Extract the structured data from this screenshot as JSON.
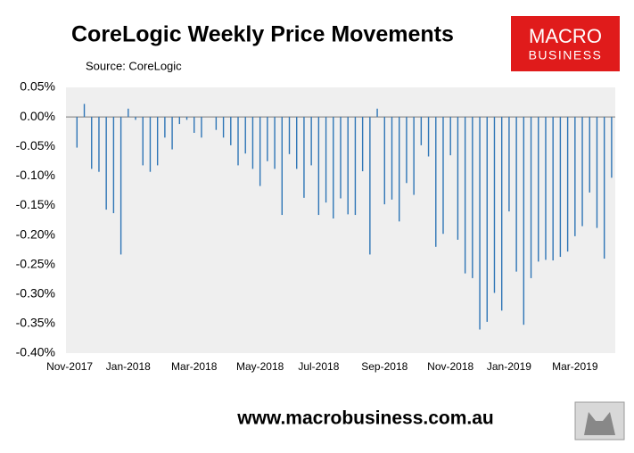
{
  "chart_data": {
    "type": "bar",
    "title": "CoreLogic Weekly Price Movements",
    "subtitle": "Source: CoreLogic",
    "categories": [
      "Nov-2017",
      null,
      null,
      null,
      null,
      null,
      null,
      null,
      "Jan-2018",
      null,
      null,
      null,
      null,
      null,
      null,
      null,
      null,
      "Mar-2018",
      null,
      null,
      null,
      null,
      null,
      null,
      null,
      null,
      "May-2018",
      null,
      null,
      null,
      null,
      null,
      null,
      null,
      "Jul-2018",
      null,
      null,
      null,
      null,
      null,
      null,
      null,
      null,
      "Sep-2018",
      null,
      null,
      null,
      null,
      null,
      null,
      null,
      null,
      "Nov-2018",
      null,
      null,
      null,
      null,
      null,
      null,
      null,
      "Jan-2019",
      null,
      null,
      null,
      null,
      null,
      null,
      null,
      null,
      "Mar-2019",
      null,
      null,
      null,
      null,
      null
    ],
    "values": [
      null,
      -0.052,
      0.022,
      -0.088,
      -0.093,
      -0.157,
      -0.163,
      -0.233,
      0.014,
      -0.005,
      -0.082,
      -0.093,
      -0.082,
      -0.035,
      -0.055,
      -0.012,
      -0.005,
      -0.027,
      -0.035,
      null,
      -0.022,
      -0.035,
      -0.048,
      -0.082,
      -0.062,
      -0.088,
      -0.117,
      -0.075,
      -0.088,
      -0.166,
      -0.063,
      -0.088,
      -0.137,
      -0.082,
      -0.166,
      -0.145,
      -0.172,
      -0.138,
      -0.165,
      -0.166,
      -0.092,
      -0.233,
      0.014,
      -0.148,
      -0.14,
      -0.177,
      -0.112,
      -0.132,
      -0.048,
      -0.067,
      -0.22,
      -0.198,
      -0.065,
      -0.208,
      -0.265,
      -0.273,
      -0.36,
      -0.347,
      -0.298,
      -0.328,
      -0.16,
      -0.262,
      -0.352,
      -0.273,
      -0.245,
      -0.242,
      -0.243,
      -0.237,
      -0.228,
      -0.202,
      -0.185,
      -0.128,
      -0.188,
      -0.24,
      -0.103
    ],
    "color": "#2e75b6",
    "ylim": [
      -0.4,
      0.05
    ],
    "yticks": [
      {
        "value": -0.4,
        "label": "-0.40%"
      },
      {
        "value": -0.35,
        "label": "-0.35%"
      },
      {
        "value": -0.3,
        "label": "-0.30%"
      },
      {
        "value": -0.25,
        "label": "-0.25%"
      },
      {
        "value": -0.2,
        "label": "-0.20%"
      },
      {
        "value": -0.15,
        "label": "-0.15%"
      },
      {
        "value": -0.1,
        "label": "-0.10%"
      },
      {
        "value": -0.05,
        "label": "-0.05%"
      },
      {
        "value": 0,
        "label": "0.00%"
      },
      {
        "value": 0.05,
        "label": "0.05%"
      }
    ],
    "grid": false
  },
  "logo": [
    "MACRO",
    "BUSINESS"
  ],
  "footer": "www.macrobusiness.com.au"
}
